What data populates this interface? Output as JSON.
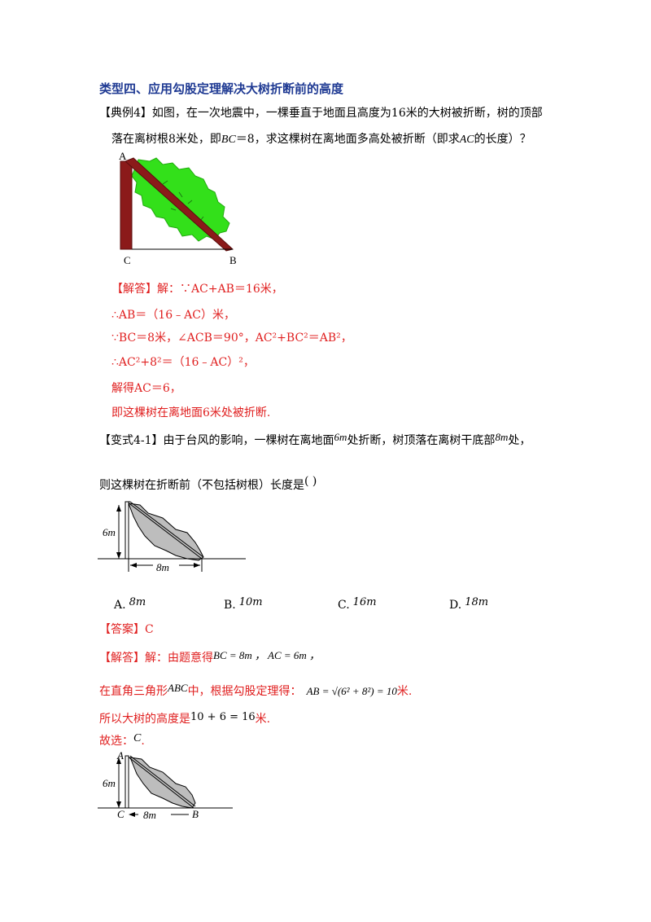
{
  "section_title": "类型四、应用勾股定理解决大树折断前的高度",
  "example4": {
    "tag": "【典例4】",
    "line1": "如图，在一次地震中，一棵垂直于地面且高度为16米的大树被折断，树的顶部",
    "line2_a": "落在离树根8米处，即",
    "line2_bc": "BC",
    "line2_b": "＝8，求这棵树在离地面多高处被折断（即求",
    "line2_ac": "AC",
    "line2_c": "的长度）？",
    "figure_labels": {
      "a": "A",
      "b": "B",
      "c": "C"
    },
    "solution_tag": "【解答】",
    "solution_lines": [
      "解：∵AC+AB＝16米，",
      "∴AB＝（16﹣AC）米，",
      "∵BC＝8米，∠ACB＝90°，AC²+BC²＝AB²，",
      "∴AC²+8²＝（16﹣AC）²，",
      "解得AC＝6，",
      "即这棵树在离地面6米处被折断."
    ]
  },
  "variant41": {
    "tag": "【变式4-1】",
    "line1_a": "由于台风的影响，一棵树在离地面",
    "line1_m1": "6m",
    "line1_b": "处折断，树顶落在离树干底部",
    "line1_m2": "8m",
    "line1_c": "处，",
    "line2": "则这棵树在折断前（不包括树根）长度是",
    "blank": "(      )",
    "figure_labels": {
      "height": "6m",
      "base": "8m"
    },
    "options": [
      {
        "letter": "A.",
        "value": "8m"
      },
      {
        "letter": "B.",
        "value": "10m"
      },
      {
        "letter": "C.",
        "value": "16m"
      },
      {
        "letter": "D.",
        "value": "18m"
      }
    ],
    "answer_tag": "【答案】",
    "answer": "C",
    "solution_tag": "【解答】",
    "solution_intro": "解：由题意得",
    "solution_given": "BC = 8m ， AC = 6m ，",
    "solution_line2_a": "在直角三角形",
    "solution_line2_abc": "ABC",
    "solution_line2_b": "中，根据勾股定理得：",
    "solution_line2_eq": "AB = √(6² + 8²) = 10",
    "solution_line2_unit": "米.",
    "solution_line3_a": "所以大树的高度是",
    "solution_line3_eq": "10 + 6 = 16",
    "solution_line3_unit": "米.",
    "solution_line4_a": "故选：",
    "solution_line4_c": "C",
    "solution_line4_end": ".",
    "figure2_labels": {
      "a": "A",
      "b": "B",
      "c": "C",
      "height": "6m",
      "base": "8m"
    }
  }
}
